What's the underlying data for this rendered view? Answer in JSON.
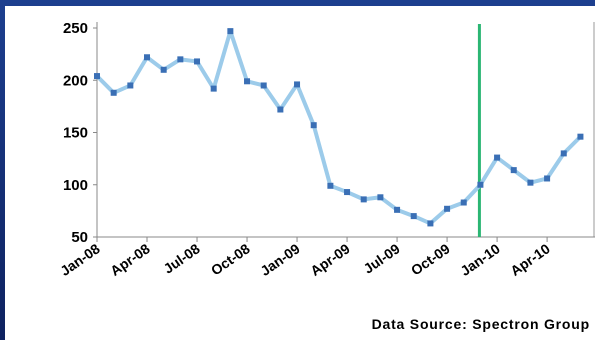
{
  "chart_data": {
    "type": "line",
    "subtitle": "Data Source: Spectron Group",
    "categories": [
      "Jan-08",
      null,
      null,
      "Apr-08",
      null,
      null,
      "Jul-08",
      null,
      null,
      "Oct-08",
      null,
      null,
      "Jan-09",
      null,
      null,
      "Apr-09",
      null,
      null,
      "Jul-09",
      null,
      null,
      "Oct-09",
      null,
      null,
      "Jan-10",
      null,
      null,
      "Apr-10",
      null,
      null
    ],
    "values": [
      204,
      188,
      195,
      222,
      210,
      220,
      218,
      192,
      247,
      199,
      195,
      172,
      196,
      157,
      99,
      93,
      86,
      88,
      76,
      70,
      63,
      77,
      83,
      100,
      126,
      114,
      102,
      106,
      130,
      146
    ],
    "color": "#9ccbea",
    "marker_color": "#3a6fb5",
    "vline_category": 23,
    "vline_color": "#2bb673",
    "ylim": [
      50,
      250
    ],
    "yticks": [
      50,
      100,
      150,
      200,
      250
    ]
  }
}
